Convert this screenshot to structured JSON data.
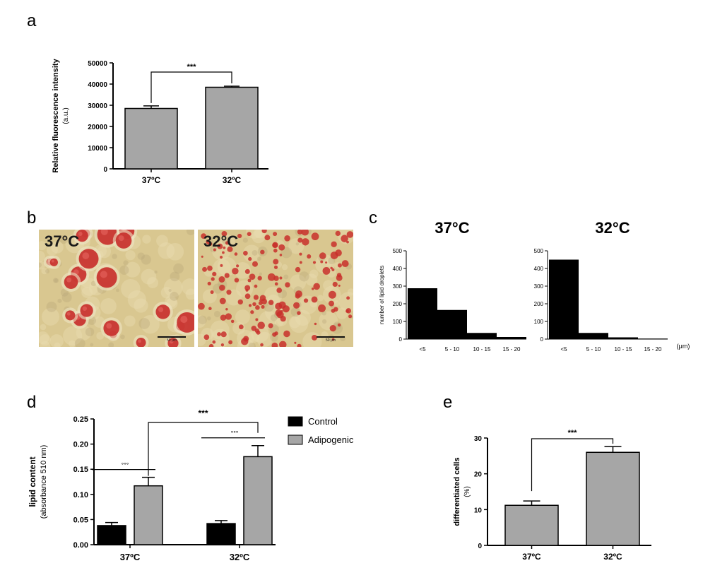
{
  "panels": {
    "a": {
      "letter": "a"
    },
    "b": {
      "letter": "b",
      "left_label": "37°C",
      "right_label": "32°C",
      "scale_label": "50 μm"
    },
    "c": {
      "letter": "c"
    },
    "d": {
      "letter": "d"
    },
    "e": {
      "letter": "e"
    }
  },
  "colors": {
    "bar_gray": "#a6a6a6",
    "bar_black": "#000000",
    "micro_bg": "#d9c790",
    "droplet_red": "#c8302c"
  },
  "chart_data": [
    {
      "id": "a",
      "type": "bar",
      "categories": [
        "37ºC",
        "32ºC"
      ],
      "values": [
        28500,
        38500
      ],
      "errors": [
        1200,
        500
      ],
      "ylabel": "Relative fluorescence intensity",
      "ylabel2": "(a.u.)",
      "ylim": [
        0,
        50000
      ],
      "yticks": [
        0,
        10000,
        20000,
        30000,
        40000,
        50000
      ],
      "significance": [
        {
          "label": "***",
          "between": [
            0,
            1
          ]
        }
      ]
    },
    {
      "id": "c1",
      "type": "bar",
      "title": "37°C",
      "categories": [
        "<5",
        "5 - 10",
        "10 - 15",
        "15 - 20"
      ],
      "values": [
        288,
        165,
        35,
        12
      ],
      "ylabel": "number of lipid droplets",
      "ylim": [
        0,
        500
      ],
      "yticks": [
        0,
        100,
        200,
        300,
        400,
        500
      ]
    },
    {
      "id": "c2",
      "type": "bar",
      "title": "32°C",
      "categories": [
        "<5",
        "5 - 10",
        "10 - 15",
        "15 - 20"
      ],
      "values": [
        450,
        35,
        10,
        3
      ],
      "unit_label": "(μm)",
      "ylim": [
        0,
        500
      ],
      "yticks": [
        0,
        100,
        200,
        300,
        400,
        500
      ]
    },
    {
      "id": "d",
      "type": "bar",
      "categories": [
        "37ºC",
        "32ºC"
      ],
      "series": [
        {
          "name": "Control",
          "values": [
            0.038,
            0.042
          ],
          "errors": [
            0.006,
            0.006
          ]
        },
        {
          "name": "Adipogenic",
          "values": [
            0.117,
            0.175
          ],
          "errors": [
            0.017,
            0.022
          ]
        }
      ],
      "ylabel": "lipid content",
      "ylabel2": "(absorbance 510 nm)",
      "ylim": [
        0,
        0.25
      ],
      "yticks": [
        "0.00",
        "0.05",
        "0.10",
        "0.15",
        "0.20",
        "0.25"
      ],
      "legend": "top-right",
      "significance": [
        {
          "label": "°°°"
        },
        {
          "label": "°°°"
        },
        {
          "label": "***"
        }
      ]
    },
    {
      "id": "e",
      "type": "bar",
      "categories": [
        "37ºC",
        "32ºC"
      ],
      "values": [
        11.2,
        26.0
      ],
      "errors": [
        1.2,
        1.6
      ],
      "ylabel": "differentiated cells",
      "ylabel2": "(%)",
      "ylim": [
        0,
        30
      ],
      "yticks": [
        0,
        10,
        20,
        30
      ],
      "significance": [
        {
          "label": "***",
          "between": [
            0,
            1
          ]
        }
      ]
    }
  ]
}
